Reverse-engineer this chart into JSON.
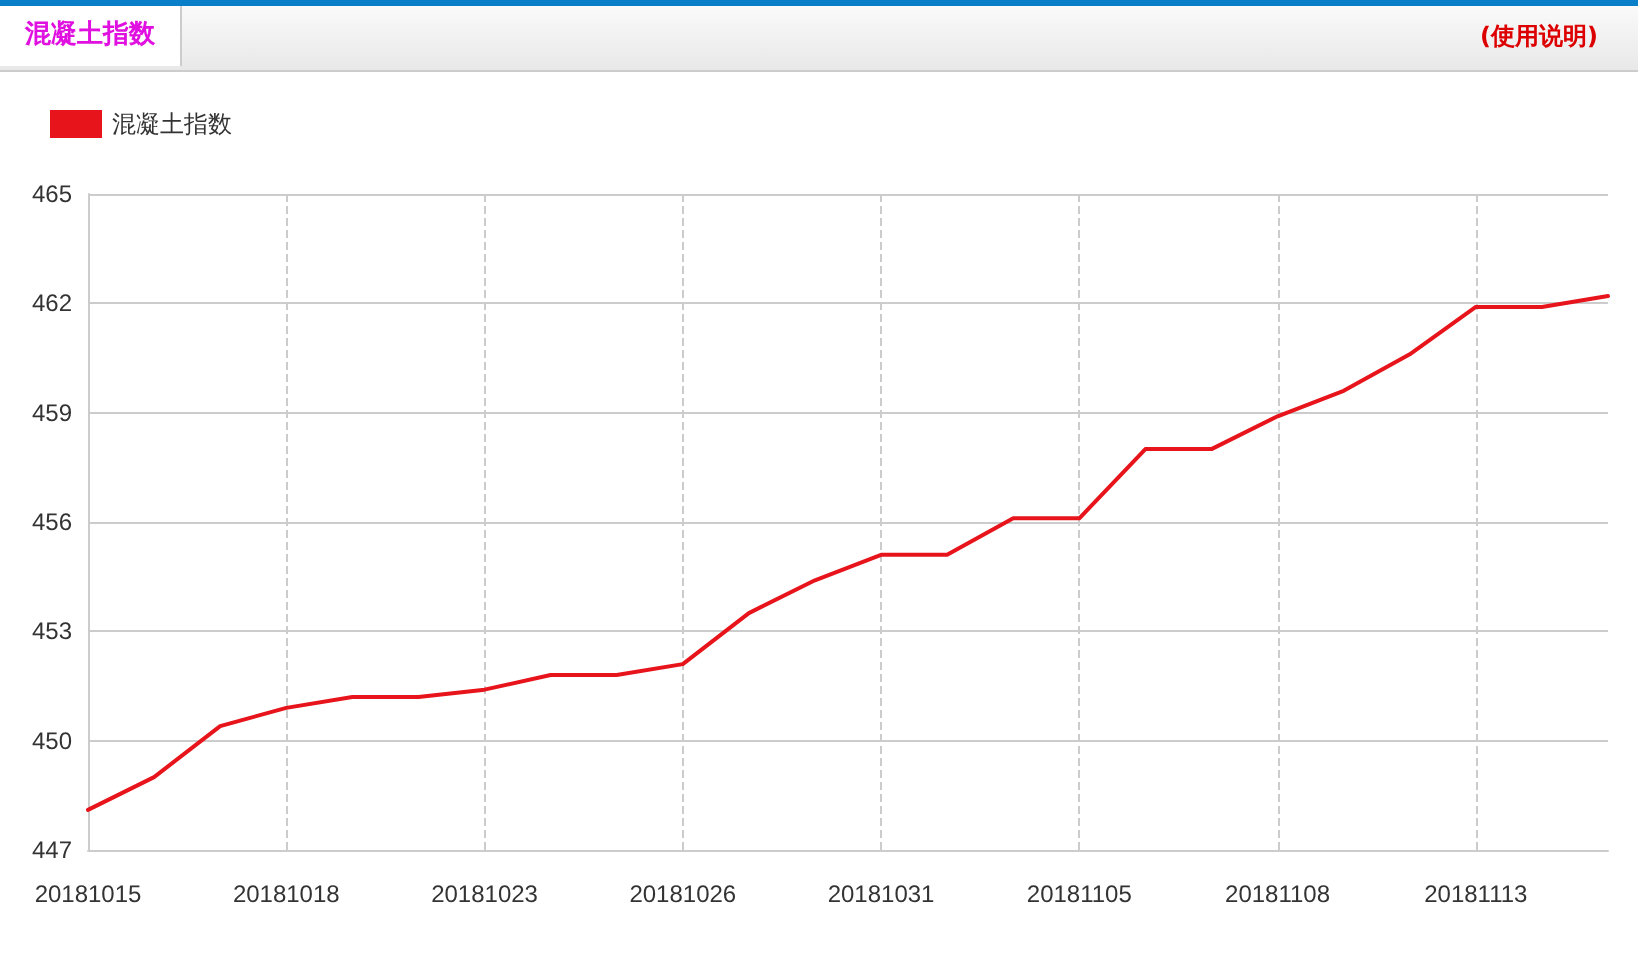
{
  "chart_data": {
    "type": "line",
    "title": "混凝土指数",
    "annotations": [
      "(使用说明)"
    ],
    "categories": [
      "20181015",
      null,
      null,
      "20181018",
      null,
      null,
      "20181023",
      null,
      null,
      "20181026",
      null,
      null,
      "20181031",
      null,
      null,
      "20181105",
      null,
      null,
      "20181108",
      null,
      null,
      "20181113",
      null,
      null
    ],
    "series": [
      {
        "name": "混凝土指数",
        "color": "#e8141b",
        "values": [
          448.1,
          449.0,
          450.4,
          450.9,
          451.2,
          451.2,
          451.4,
          451.8,
          451.8,
          452.1,
          453.5,
          454.4,
          455.1,
          455.1,
          456.1,
          456.1,
          458.0,
          458.0,
          458.9,
          459.6,
          460.6,
          461.9,
          461.9,
          462.2
        ]
      }
    ],
    "ylim": [
      447,
      465
    ],
    "yticks": [
      447,
      450,
      453,
      456,
      459,
      462,
      465
    ],
    "grid": true,
    "legend": "top left",
    "marker": "none",
    "line_style": "solid"
  }
}
